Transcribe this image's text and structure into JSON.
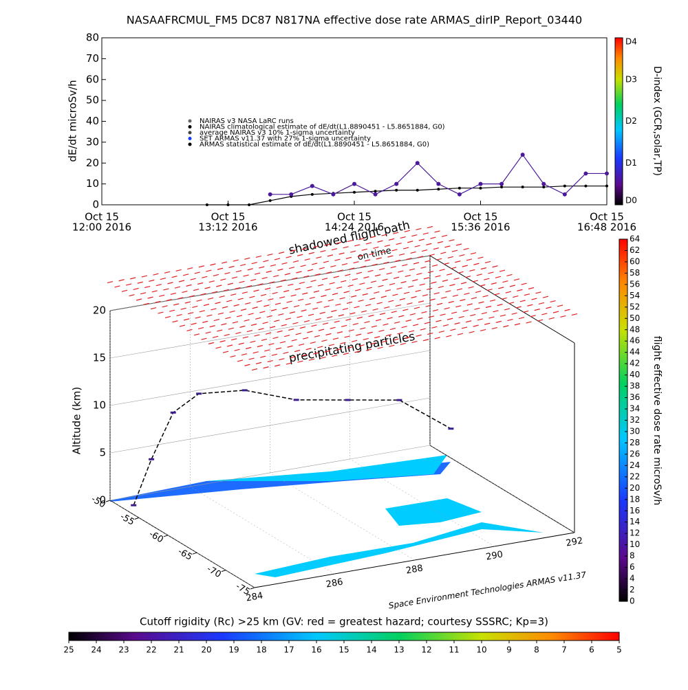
{
  "chart_data": [
    {
      "type": "line",
      "title": "NASAAFRCMUL_FM5 DC87 N817NA effective dose rate ARMAS_dirIP_Report_03440",
      "y_label": "dE/dt microSv/h",
      "x": [
        "2016-10-15 12:00",
        "2016-10-15 12:12",
        "2016-10-15 12:24",
        "2016-10-15 12:36",
        "2016-10-15 12:48",
        "2016-10-15 13:00",
        "2016-10-15 13:12",
        "2016-10-15 13:24",
        "2016-10-15 13:36",
        "2016-10-15 13:48",
        "2016-10-15 14:00",
        "2016-10-15 14:12",
        "2016-10-15 14:24",
        "2016-10-15 14:36",
        "2016-10-15 14:48",
        "2016-10-15 15:00",
        "2016-10-15 15:12",
        "2016-10-15 15:24",
        "2016-10-15 15:36",
        "2016-10-15 15:48",
        "2016-10-15 16:00",
        "2016-10-15 16:12",
        "2016-10-15 16:24",
        "2016-10-15 16:36",
        "2016-10-15 16:48"
      ],
      "xlim": [
        "2016-10-15 12:00",
        "2016-10-15 16:48"
      ],
      "xticks": [
        {
          "value": "2016-10-15 12:00",
          "label": [
            "Oct 15",
            "12:00 2016"
          ]
        },
        {
          "value": "2016-10-15 13:12",
          "label": [
            "Oct 15",
            "13:12 2016"
          ]
        },
        {
          "value": "2016-10-15 14:24",
          "label": [
            "Oct 15",
            "14:24 2016"
          ]
        },
        {
          "value": "2016-10-15 15:36",
          "label": [
            "Oct 15",
            "15:36 2016"
          ]
        },
        {
          "value": "2016-10-15 16:48",
          "label": [
            "Oct 15",
            "16:48 2016"
          ]
        }
      ],
      "ylim": [
        0,
        80
      ],
      "yticks": [
        0,
        10,
        20,
        30,
        40,
        50,
        60,
        70,
        80
      ],
      "series": [
        {
          "name": "NAIRAS v3 NASA LaRC runs",
          "color": "#000000",
          "values": [
            null,
            null,
            null,
            null,
            null,
            0,
            0,
            0,
            2,
            4,
            5,
            5.5,
            6,
            6.5,
            7,
            7,
            7.5,
            8,
            8,
            8.5,
            8.5,
            8.5,
            9,
            9,
            9
          ]
        },
        {
          "name": "ARMAS statistical estimate of dE/dt(L1.8890451 - L5.8651884, G0)",
          "color": "#4a1a9a",
          "values": [
            null,
            null,
            null,
            null,
            null,
            null,
            null,
            null,
            5,
            5,
            9,
            5,
            10,
            5,
            10,
            20,
            10,
            5,
            10,
            10,
            24,
            10,
            5,
            15,
            15
          ]
        }
      ],
      "legend_extra": [
        "NAIRAS climatological estimate of dE/dt(L1.8890451 - L5.8651884, G0)",
        "average NAIRAS v3 10% 1-sigma uncertainty",
        "SET ARMAS v11.37 with 27% 1-sigma uncertainty"
      ],
      "colorbar": {
        "label": "D-index (GCR,solar,TP)",
        "ticks": [
          "D0",
          "D1",
          "D2",
          "D3",
          "D4"
        ]
      }
    },
    {
      "type": "scatter3d",
      "annotations": [
        "shadowed flight path",
        "on time",
        "precipitating particles"
      ],
      "z_label": "Altitude (km)",
      "zlim": [
        0,
        20
      ],
      "zticks": [
        0,
        5,
        10,
        15,
        20
      ],
      "ylim": [
        -50,
        -75
      ],
      "yticks": [
        -50,
        -55,
        -60,
        -65,
        -70,
        -75
      ],
      "xlim": [
        284,
        292
      ],
      "xticks": [
        284,
        286,
        288,
        290,
        292
      ],
      "series": [
        {
          "name": "flight path",
          "color": "#000000",
          "x": [
            284.3,
            284.6,
            285,
            285.5,
            286.5,
            287.5,
            288.5,
            289.5,
            290.5
          ],
          "y": [
            -52,
            -53,
            -54,
            -55,
            -56,
            -58,
            -60,
            -62,
            -64
          ],
          "z": [
            0,
            5,
            10,
            12,
            12,
            11,
            11,
            11,
            8
          ]
        }
      ],
      "credit": "Space Environment Technologies ARMAS v11.37",
      "colorbar": {
        "label": "flight effective dose rate microSv/h",
        "clim": [
          0,
          64
        ],
        "ticks": [
          0,
          2,
          4,
          6,
          8,
          10,
          12,
          14,
          16,
          18,
          20,
          22,
          24,
          26,
          28,
          30,
          32,
          34,
          36,
          38,
          40,
          42,
          44,
          46,
          48,
          50,
          52,
          54,
          56,
          58,
          60,
          62,
          64
        ]
      },
      "colorbar2": {
        "label": "Cutoff rigidity (Rc) >25 km (GV: red = greatest hazard; courtesy SSSRC; Kp=3)",
        "clim": [
          25,
          5
        ],
        "ticks": [
          25,
          24,
          23,
          22,
          21,
          20,
          19,
          18,
          17,
          16,
          15,
          14,
          13,
          12,
          11,
          10,
          9,
          8,
          7,
          6,
          5
        ]
      }
    }
  ]
}
